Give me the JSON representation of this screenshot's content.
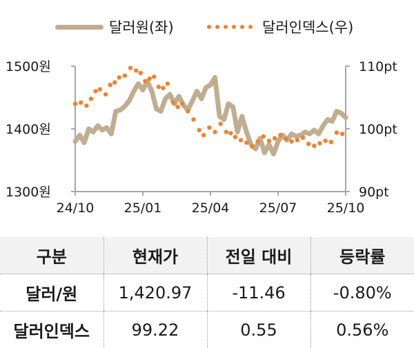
{
  "legend": {
    "series1_label": "달러원(좌)",
    "series2_label": "달러인덱스(우)"
  },
  "colors": {
    "krw_line": "#bfae8f",
    "dxy_dots": "#ee8232",
    "axis": "#a6a6a6",
    "header_bg": "#f2f2f2"
  },
  "chart_data": {
    "type": "line",
    "title": "",
    "xlabel": "",
    "x_ticks": [
      "24/10",
      "25/01",
      "25/04",
      "25/07",
      "25/10"
    ],
    "left_axis": {
      "label": "달러원",
      "ticks": [
        "1500원",
        "1400원",
        "1300원"
      ],
      "range": [
        1300,
        1500
      ]
    },
    "right_axis": {
      "label": "달러인덱스",
      "ticks": [
        "110pt",
        "100pt",
        "90pt"
      ],
      "range": [
        90,
        110
      ]
    },
    "legend_position": "top",
    "grid": false,
    "series": [
      {
        "name": "달러원(좌)",
        "axis": "left",
        "style": "thick-line",
        "x": [
          0,
          0.2,
          0.4,
          0.6,
          0.8,
          1.0,
          1.2,
          1.4,
          1.6,
          1.8,
          2.0,
          2.2,
          2.4,
          2.6,
          2.8,
          3.0,
          3.2,
          3.4,
          3.6,
          3.8,
          4.0,
          4.2,
          4.4,
          4.6,
          4.8,
          5.0,
          5.2,
          5.4,
          5.6,
          5.8,
          6.0,
          6.2,
          6.4,
          6.6,
          6.8,
          7.0,
          7.2,
          7.4,
          7.6,
          7.8,
          8.0,
          8.2,
          8.4,
          8.6,
          8.8,
          9.0,
          9.2,
          9.4,
          9.6,
          9.8,
          10.0,
          10.2,
          10.4,
          10.6,
          10.8,
          11.0,
          11.2,
          11.4,
          11.6,
          11.8,
          12.0
        ],
        "values": [
          1380,
          1390,
          1378,
          1400,
          1395,
          1405,
          1398,
          1402,
          1392,
          1428,
          1430,
          1436,
          1445,
          1460,
          1472,
          1462,
          1476,
          1460,
          1432,
          1428,
          1448,
          1455,
          1440,
          1452,
          1438,
          1430,
          1445,
          1460,
          1448,
          1466,
          1470,
          1482,
          1420,
          1415,
          1440,
          1435,
          1395,
          1420,
          1395,
          1375,
          1368,
          1385,
          1362,
          1375,
          1360,
          1380,
          1390,
          1382,
          1392,
          1388,
          1390,
          1395,
          1392,
          1398,
          1392,
          1405,
          1415,
          1412,
          1428,
          1425,
          1418
        ],
        "end_value": 1420.97
      },
      {
        "name": "달러인덱스(우)",
        "axis": "right",
        "style": "dots",
        "x": [
          0,
          0.25,
          0.5,
          0.7,
          0.9,
          1.1,
          1.35,
          1.55,
          1.75,
          1.95,
          2.2,
          2.45,
          2.7,
          2.9,
          3.1,
          3.3,
          3.5,
          3.7,
          3.9,
          4.1,
          4.35,
          4.55,
          4.75,
          5.0,
          5.25,
          5.5,
          5.7,
          5.95,
          6.2,
          6.45,
          6.7,
          6.9,
          7.1,
          7.35,
          7.6,
          7.85,
          8.1,
          8.35,
          8.6,
          8.85,
          9.1,
          9.35,
          9.6,
          9.85,
          10.1,
          10.35,
          10.6,
          10.85,
          11.1,
          11.35,
          11.6,
          11.85
        ],
        "values": [
          104.0,
          104.2,
          103.7,
          104.8,
          106.0,
          106.3,
          105.5,
          107.0,
          107.4,
          108.2,
          108.5,
          109.7,
          109.3,
          108.9,
          107.6,
          108.0,
          108.3,
          106.7,
          106.5,
          107.2,
          104.2,
          103.5,
          104.0,
          102.8,
          101.5,
          99.8,
          99.0,
          100.2,
          99.5,
          100.8,
          99.5,
          99.3,
          98.7,
          98.2,
          97.8,
          97.2,
          98.0,
          98.8,
          98.1,
          98.5,
          99.0,
          98.4,
          98.0,
          98.2,
          98.6,
          97.6,
          97.3,
          97.7,
          98.1,
          97.9,
          99.4,
          99.2
        ],
        "end_value": 99.22
      }
    ]
  },
  "table": {
    "headers": [
      "구분",
      "현재가",
      "전일 대비",
      "등락률"
    ],
    "rows": [
      {
        "label": "달러/원",
        "price": "1,420.97",
        "change": "-11.46",
        "rate": "-0.80%"
      },
      {
        "label": "달러인덱스",
        "price": "99.22",
        "change": "0.55",
        "rate": "0.56%"
      }
    ]
  }
}
